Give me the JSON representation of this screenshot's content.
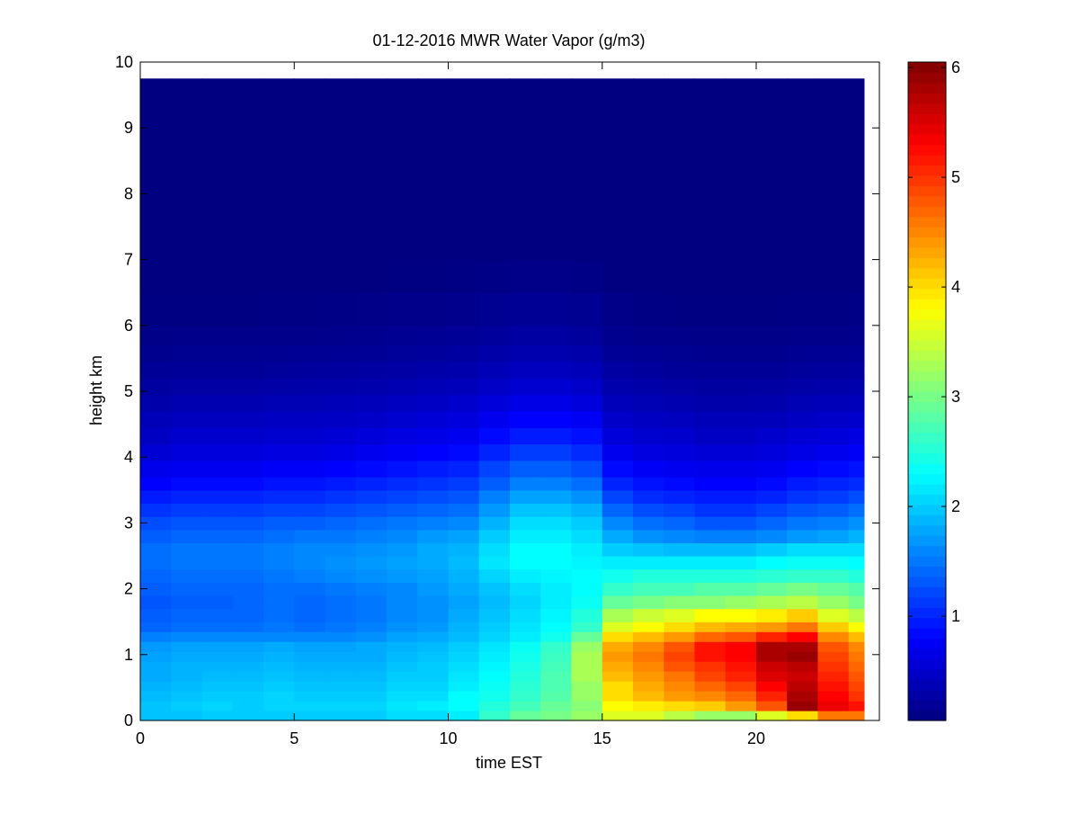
{
  "chart_data": {
    "type": "heatmap",
    "title": "01-12-2016 MWR Water Vapor (g/m3)",
    "xlabel": "time EST",
    "ylabel": "height km",
    "xlim": [
      0,
      24
    ],
    "ylim": [
      0,
      10
    ],
    "xticks": [
      0,
      5,
      10,
      15,
      20
    ],
    "yticks": [
      0,
      1,
      2,
      3,
      4,
      5,
      6,
      7,
      8,
      9,
      10
    ],
    "colormap": "jet",
    "color_range": [
      0.05,
      6.05
    ],
    "colorbar_ticks": [
      1,
      2,
      3,
      4,
      5,
      6
    ],
    "time_cells_start": [
      0,
      1,
      2,
      3,
      4,
      5,
      6,
      7,
      8,
      9,
      10,
      11,
      12,
      13,
      14,
      15,
      16,
      17,
      18,
      19,
      20,
      21,
      22,
      23
    ],
    "time_cell_end": 23.5,
    "height_cells_start": [
      0,
      0.15,
      0.3,
      0.45,
      0.6,
      0.75,
      0.9,
      1.05,
      1.2,
      1.35,
      1.5,
      1.7,
      1.9,
      2.1,
      2.3,
      2.5,
      2.7,
      2.9,
      3.1,
      3.3,
      3.5,
      3.7,
      3.95,
      4.2,
      4.45,
      4.7,
      4.95,
      5.2,
      5.45,
      5.7,
      6.0,
      6.5,
      7.0,
      7.5,
      8.0,
      8.5,
      9.0,
      9.5
    ],
    "height_cell_end": 9.75,
    "values_by_height": [
      [
        1.95,
        1.95,
        2.0,
        2.0,
        2.0,
        2.0,
        2.0,
        2.0,
        2.1,
        2.1,
        2.2,
        2.6,
        2.9,
        3.0,
        3.2,
        3.6,
        3.6,
        3.4,
        3.2,
        3.2,
        3.6,
        4.0,
        4.6,
        4.6
      ],
      [
        1.95,
        2.0,
        2.05,
        2.0,
        2.05,
        2.05,
        2.05,
        2.05,
        2.15,
        2.2,
        2.3,
        2.5,
        2.7,
        2.9,
        3.1,
        3.8,
        3.9,
        4.0,
        4.1,
        4.4,
        4.8,
        5.9,
        5.4,
        5.2
      ],
      [
        1.9,
        1.95,
        2.0,
        2.0,
        2.05,
        2.0,
        2.0,
        2.0,
        2.1,
        2.1,
        2.3,
        2.4,
        2.6,
        2.8,
        3.2,
        4.0,
        4.2,
        4.4,
        4.5,
        4.7,
        5.1,
        5.8,
        5.3,
        5.0
      ],
      [
        1.85,
        1.9,
        1.95,
        1.95,
        2.0,
        1.95,
        1.95,
        1.95,
        2.05,
        2.05,
        2.2,
        2.35,
        2.55,
        2.75,
        3.2,
        4.0,
        4.3,
        4.5,
        4.7,
        4.9,
        5.3,
        5.7,
        5.2,
        4.9
      ],
      [
        1.8,
        1.85,
        1.9,
        1.9,
        1.95,
        1.9,
        1.9,
        1.9,
        2.0,
        2.0,
        2.15,
        2.3,
        2.5,
        2.75,
        3.3,
        4.2,
        4.4,
        4.6,
        4.9,
        5.1,
        5.5,
        5.6,
        5.1,
        4.8
      ],
      [
        1.8,
        1.85,
        1.85,
        1.85,
        1.9,
        1.85,
        1.85,
        1.85,
        1.95,
        2.0,
        2.1,
        2.25,
        2.45,
        2.7,
        3.3,
        4.3,
        4.5,
        4.8,
        5.0,
        5.2,
        5.6,
        5.7,
        5.0,
        4.7
      ],
      [
        1.75,
        1.8,
        1.8,
        1.8,
        1.85,
        1.8,
        1.8,
        1.8,
        1.9,
        1.95,
        2.05,
        2.2,
        2.4,
        2.65,
        3.3,
        4.4,
        4.6,
        4.9,
        5.2,
        5.3,
        5.8,
        5.9,
        4.9,
        4.6
      ],
      [
        1.7,
        1.75,
        1.75,
        1.75,
        1.8,
        1.75,
        1.75,
        1.8,
        1.85,
        1.9,
        2.0,
        2.15,
        2.35,
        2.6,
        3.2,
        4.3,
        4.5,
        4.8,
        5.2,
        5.3,
        5.8,
        5.8,
        4.8,
        4.5
      ],
      [
        1.55,
        1.6,
        1.6,
        1.6,
        1.6,
        1.6,
        1.6,
        1.65,
        1.75,
        1.8,
        1.9,
        2.05,
        2.2,
        2.4,
        2.9,
        4.0,
        4.2,
        4.4,
        4.7,
        4.8,
        5.1,
        5.3,
        4.5,
        4.2
      ],
      [
        1.4,
        1.45,
        1.45,
        1.45,
        1.5,
        1.45,
        1.5,
        1.55,
        1.65,
        1.7,
        1.85,
        2.0,
        2.15,
        2.3,
        2.6,
        3.6,
        3.8,
        4.0,
        4.2,
        4.3,
        4.4,
        4.6,
        4.1,
        3.8
      ],
      [
        1.35,
        1.4,
        1.4,
        1.4,
        1.45,
        1.4,
        1.45,
        1.5,
        1.6,
        1.65,
        1.8,
        1.95,
        2.1,
        2.25,
        2.5,
        3.3,
        3.5,
        3.6,
        3.8,
        3.8,
        3.9,
        4.1,
        3.6,
        3.4
      ],
      [
        1.3,
        1.35,
        1.35,
        1.4,
        1.45,
        1.4,
        1.45,
        1.5,
        1.6,
        1.65,
        1.75,
        1.9,
        2.05,
        2.2,
        2.35,
        2.9,
        3.0,
        3.1,
        3.1,
        3.2,
        3.3,
        3.4,
        3.2,
        3.0
      ],
      [
        1.35,
        1.4,
        1.4,
        1.4,
        1.45,
        1.45,
        1.5,
        1.55,
        1.6,
        1.7,
        1.8,
        1.95,
        2.1,
        2.2,
        2.3,
        2.6,
        2.7,
        2.7,
        2.8,
        2.8,
        2.9,
        3.0,
        2.9,
        2.8
      ],
      [
        1.4,
        1.45,
        1.45,
        1.45,
        1.5,
        1.55,
        1.6,
        1.65,
        1.7,
        1.75,
        1.85,
        2.05,
        2.2,
        2.25,
        2.3,
        2.4,
        2.5,
        2.5,
        2.5,
        2.5,
        2.55,
        2.6,
        2.6,
        2.5
      ],
      [
        1.45,
        1.5,
        1.5,
        1.5,
        1.55,
        1.6,
        1.65,
        1.7,
        1.75,
        1.8,
        1.9,
        2.15,
        2.3,
        2.3,
        2.25,
        2.2,
        2.2,
        2.2,
        2.2,
        2.2,
        2.3,
        2.35,
        2.35,
        2.3
      ],
      [
        1.45,
        1.5,
        1.5,
        1.5,
        1.55,
        1.6,
        1.6,
        1.65,
        1.7,
        1.8,
        1.85,
        2.1,
        2.3,
        2.3,
        2.2,
        2.0,
        1.95,
        1.9,
        1.9,
        1.9,
        2.0,
        2.1,
        2.1,
        2.1
      ],
      [
        1.35,
        1.4,
        1.4,
        1.4,
        1.45,
        1.5,
        1.5,
        1.55,
        1.6,
        1.7,
        1.75,
        2.0,
        2.2,
        2.2,
        2.1,
        1.8,
        1.65,
        1.6,
        1.55,
        1.55,
        1.6,
        1.7,
        1.75,
        1.85
      ],
      [
        1.25,
        1.3,
        1.3,
        1.3,
        1.35,
        1.35,
        1.4,
        1.45,
        1.5,
        1.55,
        1.6,
        1.85,
        2.1,
        2.1,
        2.0,
        1.6,
        1.45,
        1.4,
        1.3,
        1.3,
        1.4,
        1.5,
        1.55,
        1.65
      ],
      [
        1.1,
        1.15,
        1.15,
        1.15,
        1.2,
        1.2,
        1.25,
        1.3,
        1.35,
        1.4,
        1.45,
        1.7,
        1.95,
        1.95,
        1.85,
        1.4,
        1.25,
        1.2,
        1.1,
        1.1,
        1.2,
        1.3,
        1.35,
        1.45
      ],
      [
        0.95,
        1.0,
        1.0,
        1.0,
        1.05,
        1.05,
        1.1,
        1.15,
        1.2,
        1.25,
        1.3,
        1.55,
        1.75,
        1.75,
        1.65,
        1.2,
        1.05,
        1.0,
        0.95,
        0.95,
        1.0,
        1.1,
        1.15,
        1.25
      ],
      [
        0.8,
        0.85,
        0.85,
        0.85,
        0.9,
        0.9,
        0.95,
        1.0,
        1.05,
        1.1,
        1.15,
        1.35,
        1.55,
        1.55,
        1.45,
        1.0,
        0.9,
        0.85,
        0.8,
        0.8,
        0.85,
        0.95,
        1.0,
        1.05
      ],
      [
        0.68,
        0.72,
        0.72,
        0.72,
        0.76,
        0.76,
        0.8,
        0.85,
        0.9,
        0.95,
        1.0,
        1.2,
        1.35,
        1.35,
        1.25,
        0.85,
        0.75,
        0.72,
        0.68,
        0.68,
        0.72,
        0.8,
        0.85,
        0.9
      ],
      [
        0.55,
        0.6,
        0.6,
        0.6,
        0.62,
        0.62,
        0.66,
        0.7,
        0.75,
        0.8,
        0.85,
        1.0,
        1.15,
        1.15,
        1.05,
        0.7,
        0.62,
        0.6,
        0.56,
        0.56,
        0.6,
        0.66,
        0.7,
        0.75
      ],
      [
        0.45,
        0.5,
        0.5,
        0.5,
        0.52,
        0.52,
        0.55,
        0.58,
        0.62,
        0.66,
        0.7,
        0.85,
        0.95,
        0.95,
        0.88,
        0.58,
        0.52,
        0.5,
        0.46,
        0.46,
        0.5,
        0.55,
        0.58,
        0.62
      ],
      [
        0.38,
        0.42,
        0.42,
        0.42,
        0.44,
        0.44,
        0.46,
        0.48,
        0.52,
        0.56,
        0.6,
        0.7,
        0.8,
        0.8,
        0.74,
        0.48,
        0.44,
        0.42,
        0.38,
        0.38,
        0.4,
        0.45,
        0.48,
        0.5
      ],
      [
        0.3,
        0.34,
        0.34,
        0.34,
        0.36,
        0.36,
        0.38,
        0.4,
        0.43,
        0.46,
        0.5,
        0.58,
        0.66,
        0.66,
        0.6,
        0.4,
        0.36,
        0.34,
        0.3,
        0.3,
        0.32,
        0.36,
        0.38,
        0.4
      ],
      [
        0.24,
        0.27,
        0.27,
        0.27,
        0.28,
        0.29,
        0.3,
        0.32,
        0.35,
        0.37,
        0.4,
        0.47,
        0.53,
        0.53,
        0.49,
        0.32,
        0.29,
        0.27,
        0.24,
        0.24,
        0.25,
        0.28,
        0.3,
        0.32
      ],
      [
        0.18,
        0.2,
        0.2,
        0.2,
        0.21,
        0.22,
        0.23,
        0.25,
        0.27,
        0.29,
        0.31,
        0.37,
        0.42,
        0.42,
        0.38,
        0.25,
        0.22,
        0.2,
        0.18,
        0.18,
        0.19,
        0.21,
        0.23,
        0.24
      ],
      [
        0.14,
        0.15,
        0.15,
        0.15,
        0.16,
        0.17,
        0.18,
        0.19,
        0.21,
        0.22,
        0.24,
        0.29,
        0.33,
        0.33,
        0.3,
        0.19,
        0.17,
        0.15,
        0.14,
        0.14,
        0.14,
        0.16,
        0.17,
        0.18
      ],
      [
        0.1,
        0.11,
        0.11,
        0.11,
        0.12,
        0.12,
        0.13,
        0.14,
        0.16,
        0.17,
        0.18,
        0.22,
        0.25,
        0.25,
        0.22,
        0.14,
        0.12,
        0.11,
        0.1,
        0.1,
        0.1,
        0.12,
        0.12,
        0.13
      ],
      [
        0.07,
        0.07,
        0.07,
        0.07,
        0.08,
        0.08,
        0.09,
        0.1,
        0.11,
        0.12,
        0.13,
        0.15,
        0.17,
        0.17,
        0.15,
        0.1,
        0.08,
        0.07,
        0.07,
        0.07,
        0.07,
        0.08,
        0.08,
        0.09
      ],
      [
        0.05,
        0.05,
        0.05,
        0.05,
        0.05,
        0.05,
        0.06,
        0.06,
        0.07,
        0.07,
        0.08,
        0.09,
        0.1,
        0.1,
        0.09,
        0.06,
        0.05,
        0.05,
        0.05,
        0.05,
        0.05,
        0.05,
        0.05,
        0.06
      ],
      [
        0.05,
        0.05,
        0.05,
        0.05,
        0.05,
        0.05,
        0.05,
        0.05,
        0.05,
        0.05,
        0.05,
        0.05,
        0.06,
        0.06,
        0.05,
        0.05,
        0.05,
        0.05,
        0.05,
        0.05,
        0.05,
        0.05,
        0.05,
        0.05
      ],
      [
        0.05,
        0.05,
        0.05,
        0.05,
        0.05,
        0.05,
        0.05,
        0.05,
        0.05,
        0.05,
        0.05,
        0.05,
        0.05,
        0.05,
        0.05,
        0.05,
        0.05,
        0.05,
        0.05,
        0.05,
        0.05,
        0.05,
        0.05,
        0.05
      ],
      [
        0.05,
        0.05,
        0.05,
        0.05,
        0.05,
        0.05,
        0.05,
        0.05,
        0.05,
        0.05,
        0.05,
        0.05,
        0.05,
        0.05,
        0.05,
        0.05,
        0.05,
        0.05,
        0.05,
        0.05,
        0.05,
        0.05,
        0.05,
        0.05
      ],
      [
        0.05,
        0.05,
        0.05,
        0.05,
        0.05,
        0.05,
        0.05,
        0.05,
        0.05,
        0.05,
        0.05,
        0.05,
        0.05,
        0.05,
        0.05,
        0.05,
        0.05,
        0.05,
        0.05,
        0.05,
        0.05,
        0.05,
        0.05,
        0.05
      ],
      [
        0.05,
        0.05,
        0.05,
        0.05,
        0.05,
        0.05,
        0.05,
        0.05,
        0.05,
        0.05,
        0.05,
        0.05,
        0.05,
        0.05,
        0.05,
        0.05,
        0.05,
        0.05,
        0.05,
        0.05,
        0.05,
        0.05,
        0.05,
        0.05
      ],
      [
        0.05,
        0.05,
        0.05,
        0.05,
        0.05,
        0.05,
        0.05,
        0.05,
        0.05,
        0.05,
        0.05,
        0.05,
        0.05,
        0.05,
        0.05,
        0.05,
        0.05,
        0.05,
        0.05,
        0.05,
        0.05,
        0.05,
        0.05,
        0.05
      ]
    ]
  }
}
